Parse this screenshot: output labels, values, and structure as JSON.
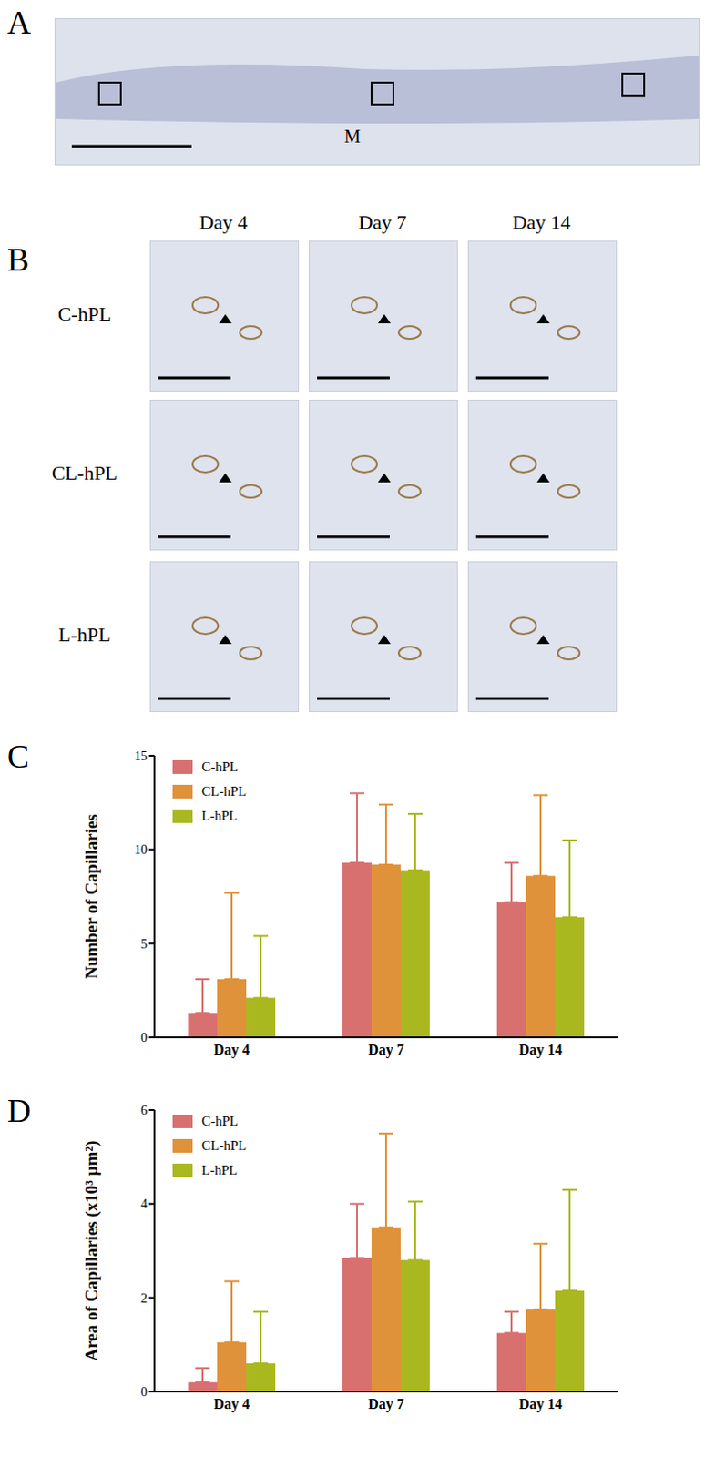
{
  "figure": {
    "panel_labels": [
      "A",
      "B",
      "C",
      "D"
    ],
    "panel_A": {
      "annotations": [
        "M"
      ]
    },
    "panel_B": {
      "columns": [
        "Day 4",
        "Day 7",
        "Day 14"
      ],
      "rows": [
        "C-hPL",
        "CL-hPL",
        "L-hPL"
      ]
    }
  },
  "chart_data": [
    {
      "type": "bar",
      "y_label": "Number of Capillaries",
      "categories": [
        "Day 4",
        "Day 7",
        "Day 14"
      ],
      "series": [
        {
          "name": "C-hPL",
          "color": "#d97070",
          "values": [
            1.3,
            9.3,
            7.2
          ],
          "errors": [
            1.8,
            3.7,
            2.1
          ]
        },
        {
          "name": "CL-hPL",
          "color": "#e0923a",
          "values": [
            3.1,
            9.2,
            8.6
          ],
          "errors": [
            4.6,
            3.2,
            4.3
          ]
        },
        {
          "name": "L-hPL",
          "color": "#aab820",
          "values": [
            2.1,
            8.9,
            6.4
          ],
          "errors": [
            3.3,
            3.0,
            4.1
          ]
        }
      ],
      "ylim": [
        0,
        15
      ],
      "yticks": [
        0,
        5,
        10,
        15
      ],
      "legend": "upper left",
      "grid": false
    },
    {
      "type": "bar",
      "y_label": "Area of Capillaries (x10³ µm²)",
      "categories": [
        "Day 4",
        "Day 7",
        "Day 14"
      ],
      "series": [
        {
          "name": "C-hPL",
          "color": "#d97070",
          "values": [
            0.2,
            2.85,
            1.25
          ],
          "errors": [
            0.3,
            1.15,
            0.45
          ]
        },
        {
          "name": "CL-hPL",
          "color": "#e0923a",
          "values": [
            1.05,
            3.5,
            1.75
          ],
          "errors": [
            1.3,
            2.0,
            1.4
          ]
        },
        {
          "name": "L-hPL",
          "color": "#aab820",
          "values": [
            0.6,
            2.8,
            2.15
          ],
          "errors": [
            1.1,
            1.25,
            2.15
          ]
        }
      ],
      "ylim": [
        0,
        6
      ],
      "yticks": [
        0,
        2,
        4,
        6
      ],
      "legend": "upper left",
      "grid": false
    }
  ]
}
